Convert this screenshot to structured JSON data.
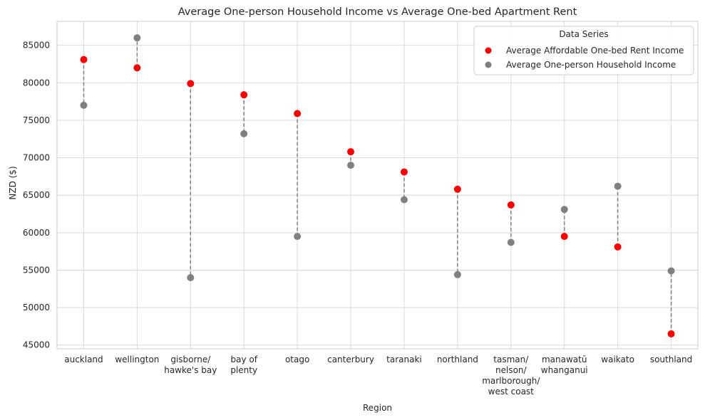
{
  "chart_data": {
    "type": "scatter",
    "title": "Average One-person Household Income vs Average One-bed Apartment Rent",
    "xlabel": "Region",
    "ylabel": "NZD ($)",
    "ylim": [
      44500,
      88200
    ],
    "yticks": [
      45000,
      50000,
      55000,
      60000,
      65000,
      70000,
      75000,
      80000,
      85000
    ],
    "grid": true,
    "legend": {
      "title": "Data Series",
      "placement": "top-right"
    },
    "categories": [
      [
        "auckland"
      ],
      [
        "wellington"
      ],
      [
        "gisborne/",
        "hawke's bay"
      ],
      [
        "bay of",
        "plenty"
      ],
      [
        "otago"
      ],
      [
        "canterbury"
      ],
      [
        "taranaki"
      ],
      [
        "northland"
      ],
      [
        "tasman/",
        "nelson/",
        "marlborough/",
        "west coast"
      ],
      [
        "manawatū",
        "whanganui"
      ],
      [
        "waikato"
      ],
      [
        "southland"
      ]
    ],
    "series": [
      {
        "name": "Average Affordable One-bed Rent Income",
        "color": "#ff0000",
        "values": [
          83100,
          82000,
          79900,
          78400,
          75900,
          70800,
          68100,
          65800,
          63700,
          59500,
          58100,
          46500
        ]
      },
      {
        "name": "Average One-person Household Income",
        "color": "#808080",
        "values": [
          77000,
          86000,
          54000,
          73200,
          59500,
          69000,
          64400,
          54400,
          58700,
          63100,
          66200,
          54900
        ]
      }
    ],
    "connector_color": "#808080"
  }
}
